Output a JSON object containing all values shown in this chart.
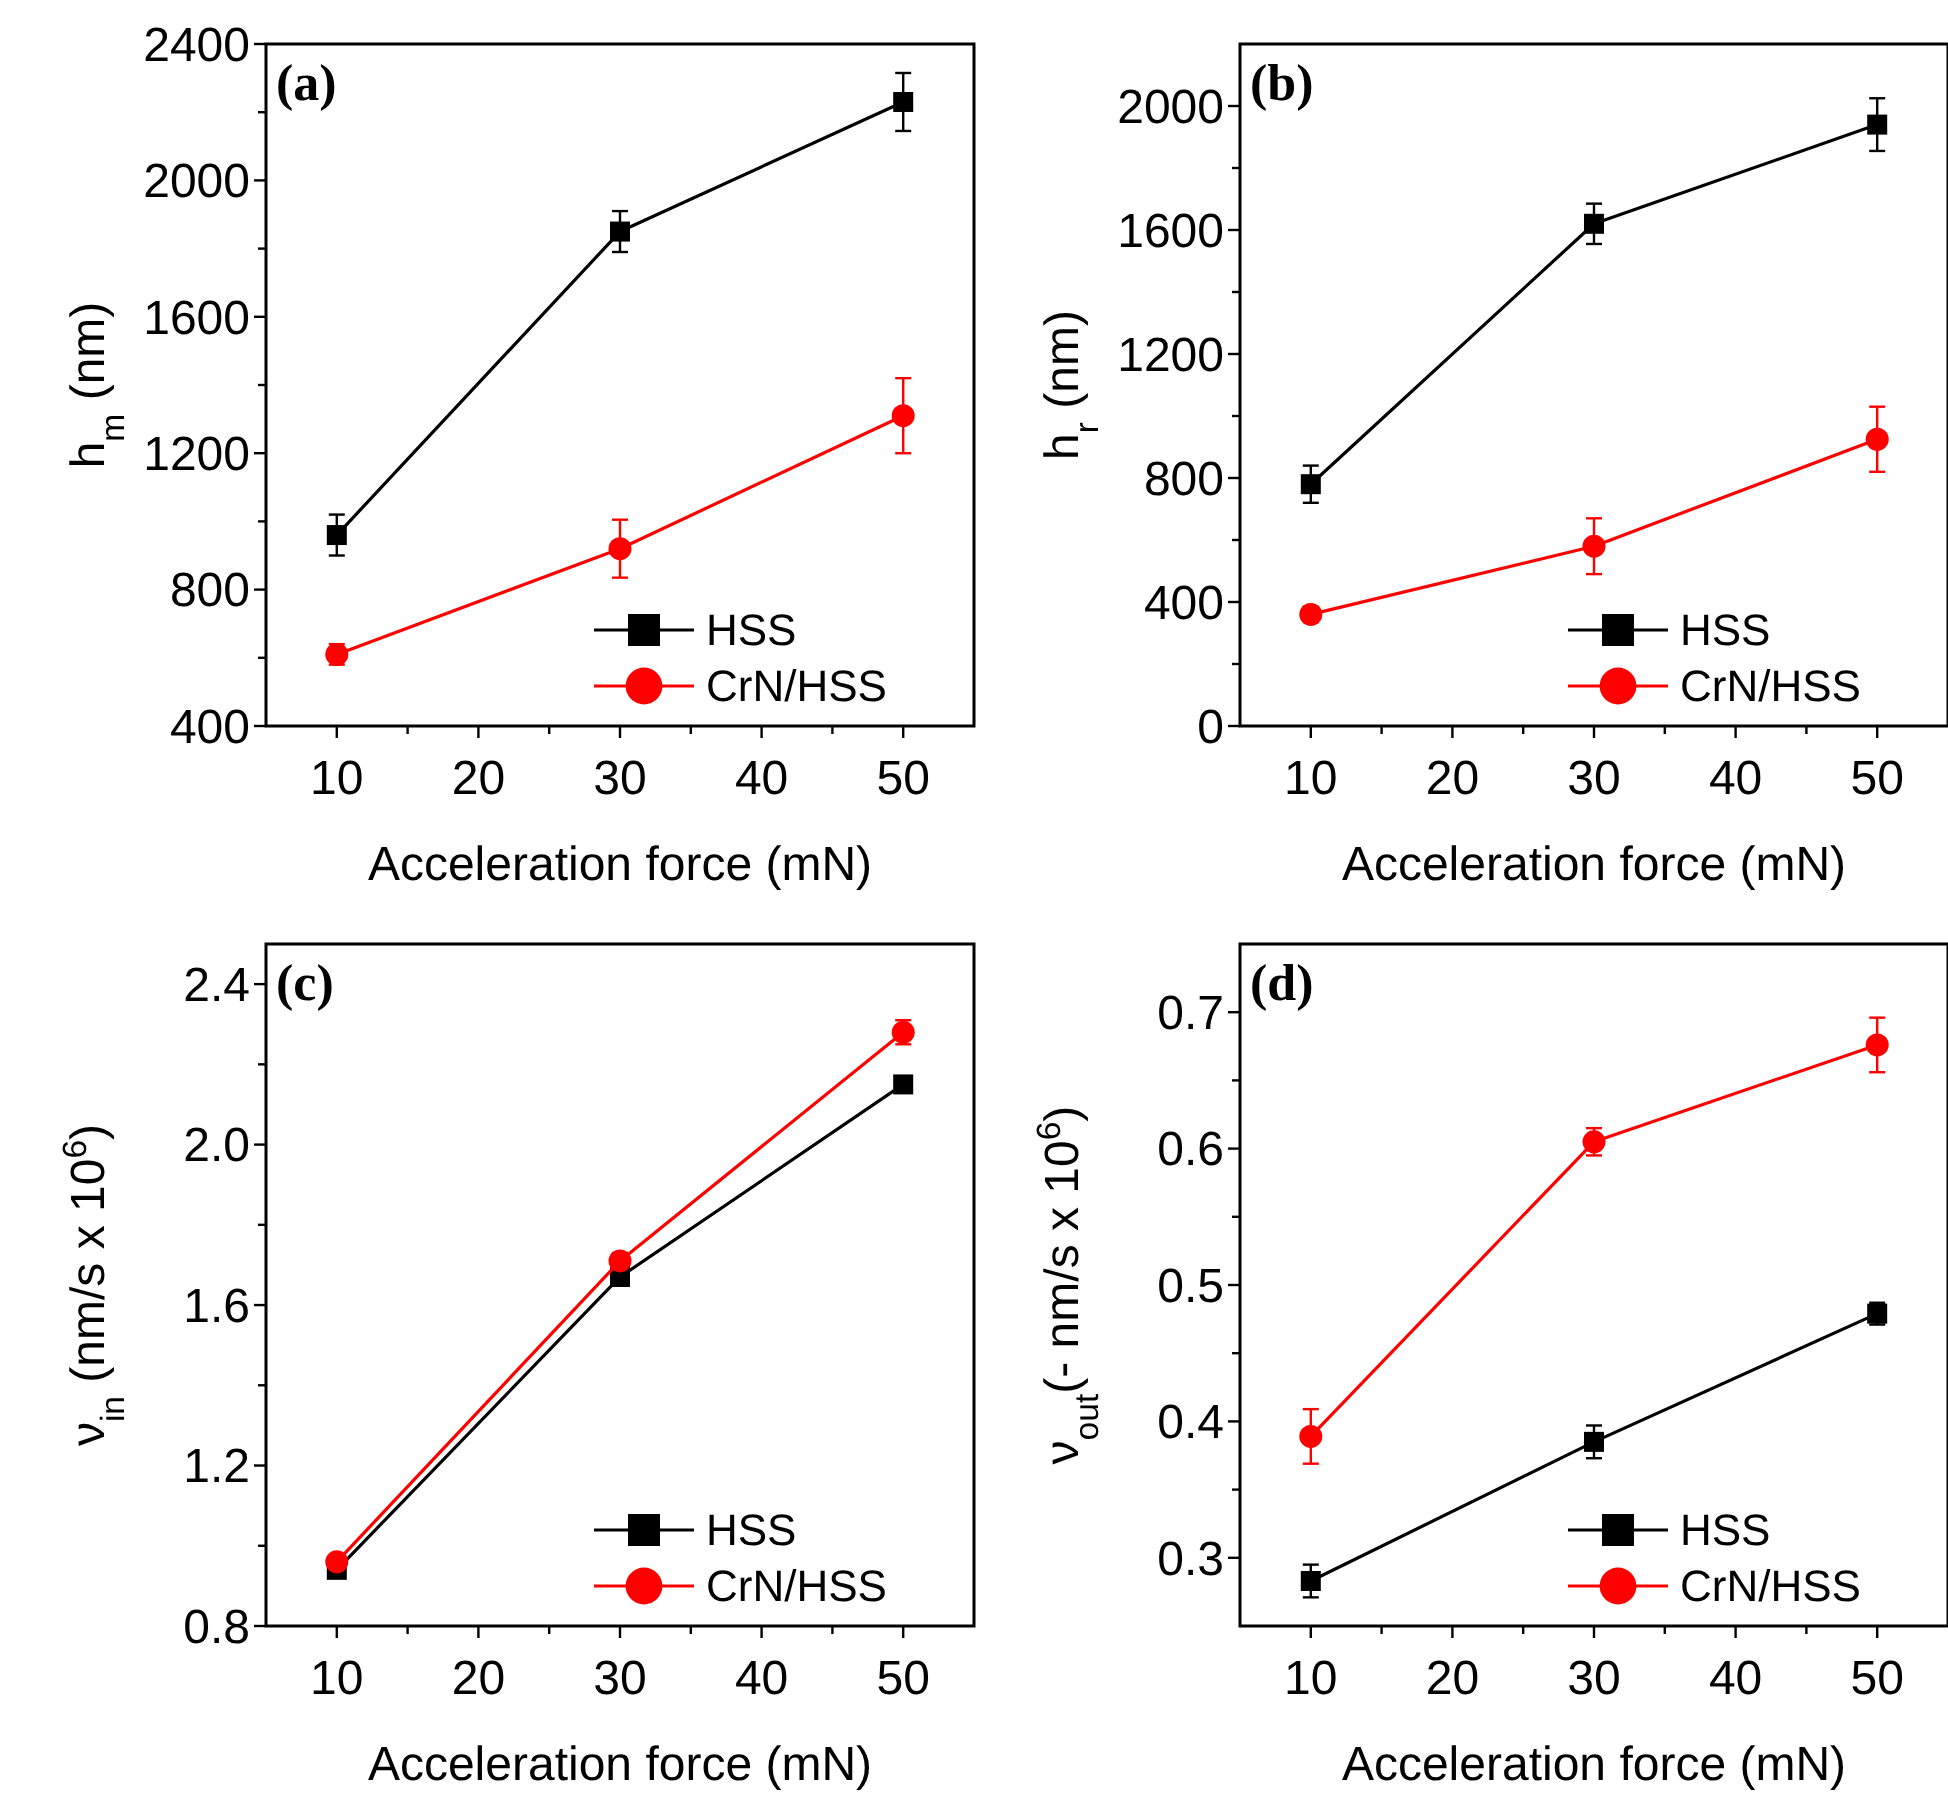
{
  "chart_data": [
    {
      "type": "line",
      "annotations": [
        "(a)"
      ],
      "xlabel": "Acceleration force (mN)",
      "ylabel": "h$_{m}$ (nm)",
      "legend": "bottom right",
      "x": [
        10,
        30,
        50
      ],
      "xlim": [
        5,
        55
      ],
      "xticks": [
        10,
        {
          "value": 15,
          "label": null
        },
        20,
        {
          "value": 25,
          "label": null
        },
        30,
        {
          "value": 35,
          "label": null
        },
        40,
        {
          "value": 45,
          "label": null
        },
        50
      ],
      "ylim": [
        400,
        2400
      ],
      "yticks": [
        400,
        {
          "value": 600,
          "label": null
        },
        800,
        {
          "value": 1000,
          "label": null
        },
        1200,
        {
          "value": 1400,
          "label": null
        },
        1600,
        {
          "value": 1800,
          "label": null
        },
        2000,
        {
          "value": 2200,
          "label": null
        },
        2400
      ],
      "series": [
        {
          "name": "HSS",
          "color": "#000000",
          "marker": "square",
          "values": [
            960,
            1850,
            2230
          ],
          "errors": [
            60,
            60,
            85
          ]
        },
        {
          "name": "CrN/HSS",
          "color": "#ff0000",
          "marker": "circle",
          "values": [
            610,
            920,
            1310
          ],
          "errors": [
            30,
            85,
            110
          ]
        }
      ]
    },
    {
      "type": "line",
      "annotations": [
        "(b)"
      ],
      "xlabel": "Acceleration force (mN)",
      "ylabel": "h$_{r}$ (nm)",
      "legend": "bottom right",
      "x": [
        10,
        30,
        50
      ],
      "xlim": [
        5,
        55
      ],
      "xticks": [
        10,
        {
          "value": 15,
          "label": null
        },
        20,
        {
          "value": 25,
          "label": null
        },
        30,
        {
          "value": 35,
          "label": null
        },
        40,
        {
          "value": 45,
          "label": null
        },
        50
      ],
      "ylim": [
        0,
        2200
      ],
      "yticks": [
        0,
        {
          "value": 200,
          "label": null
        },
        400,
        {
          "value": 600,
          "label": null
        },
        800,
        {
          "value": 1000,
          "label": null
        },
        1200,
        {
          "value": 1400,
          "label": null
        },
        1600,
        {
          "value": 1800,
          "label": null
        },
        2000
      ],
      "series": [
        {
          "name": "HSS",
          "color": "#000000",
          "marker": "square",
          "values": [
            780,
            1620,
            1940
          ],
          "errors": [
            60,
            65,
            85
          ]
        },
        {
          "name": "CrN/HSS",
          "color": "#ff0000",
          "marker": "circle",
          "values": [
            360,
            580,
            925
          ],
          "errors": [
            25,
            90,
            105
          ]
        }
      ]
    },
    {
      "type": "line",
      "annotations": [
        "(c)"
      ],
      "xlabel": "Acceleration force (mN)",
      "ylabel": "ν$_{in}$ (nm/s x 10$^{6}$)",
      "legend": "bottom right",
      "x": [
        10,
        30,
        50
      ],
      "xlim": [
        5,
        55
      ],
      "xticks": [
        10,
        {
          "value": 15,
          "label": null
        },
        20,
        {
          "value": 25,
          "label": null
        },
        30,
        {
          "value": 35,
          "label": null
        },
        40,
        {
          "value": 45,
          "label": null
        },
        50
      ],
      "ylim": [
        0.8,
        2.5
      ],
      "yticks": [
        {
          "value": 0.8,
          "label": "0.8"
        },
        {
          "value": 1.0,
          "label": null
        },
        {
          "value": 1.2,
          "label": "1.2"
        },
        {
          "value": 1.4,
          "label": null
        },
        {
          "value": 1.6,
          "label": "1.6"
        },
        {
          "value": 1.8,
          "label": null
        },
        {
          "value": 2.0,
          "label": "2.0"
        },
        {
          "value": 2.2,
          "label": null
        },
        {
          "value": 2.4,
          "label": "2.4"
        }
      ],
      "series": [
        {
          "name": "HSS",
          "color": "#000000",
          "marker": "square",
          "values": [
            0.94,
            1.67,
            2.15
          ],
          "errors": [
            null,
            null,
            null
          ]
        },
        {
          "name": "CrN/HSS",
          "color": "#ff0000",
          "marker": "circle",
          "values": [
            0.96,
            1.71,
            2.28
          ],
          "errors": [
            null,
            0.02,
            0.03
          ]
        }
      ]
    },
    {
      "type": "line",
      "annotations": [
        "(d)"
      ],
      "xlabel": "Acceleration force (mN)",
      "ylabel": "ν$_{out}$(- nm/s x 10$^{6}$)",
      "legend": "bottom right",
      "x": [
        10,
        30,
        50
      ],
      "xlim": [
        5,
        55
      ],
      "xticks": [
        10,
        {
          "value": 15,
          "label": null
        },
        20,
        {
          "value": 25,
          "label": null
        },
        30,
        {
          "value": 35,
          "label": null
        },
        40,
        {
          "value": 45,
          "label": null
        },
        50
      ],
      "ylim": [
        0.25,
        0.75
      ],
      "yticks": [
        0.3,
        {
          "value": 0.35,
          "label": null
        },
        0.4,
        {
          "value": 0.45,
          "label": null
        },
        0.5,
        {
          "value": 0.55,
          "label": null
        },
        0.6,
        {
          "value": 0.65,
          "label": null
        },
        0.7
      ],
      "series": [
        {
          "name": "HSS",
          "color": "#000000",
          "marker": "square",
          "values": [
            0.283,
            0.385,
            0.479
          ],
          "errors": [
            0.012,
            0.012,
            0.008
          ]
        },
        {
          "name": "CrN/HSS",
          "color": "#ff0000",
          "marker": "circle",
          "values": [
            0.389,
            0.605,
            0.676
          ],
          "errors": [
            0.02,
            0.01,
            0.02
          ]
        }
      ]
    }
  ]
}
